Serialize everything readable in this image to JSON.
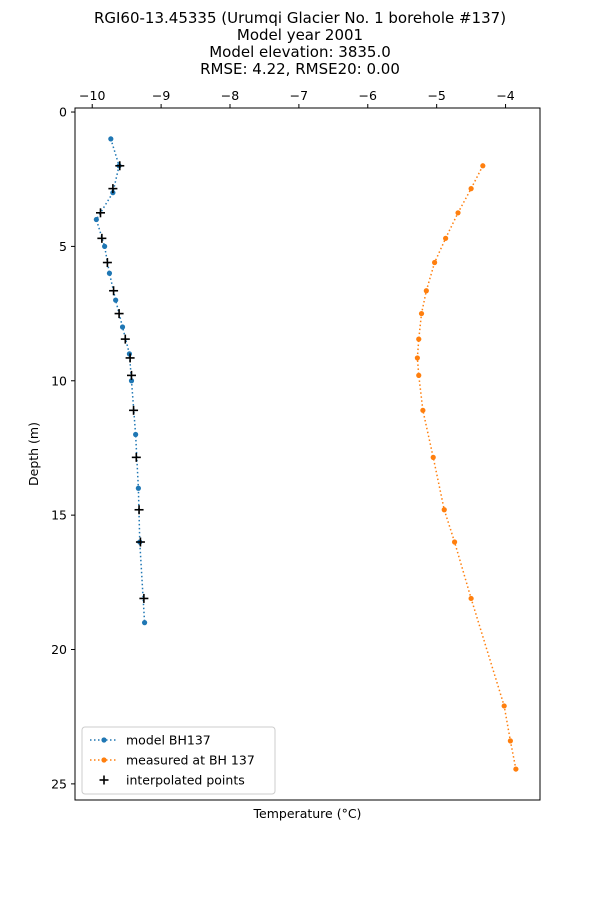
{
  "chart_data": {
    "type": "line",
    "title_lines": [
      "RGI60-13.45335 (Urumqi Glacier No. 1 borehole #137)",
      "Model year 2001",
      "Model elevation: 3835.0",
      "RMSE: 4.22, RMSE20: 0.00"
    ],
    "xlabel": "Temperature (°C)",
    "ylabel": "Depth (m)",
    "xlim": [
      -10.25,
      -3.5
    ],
    "ylim": [
      25.6,
      -0.15
    ],
    "y_inverted": true,
    "x_axis_position": "top",
    "xticks": [
      -10,
      -9,
      -8,
      -7,
      -6,
      -5,
      -4
    ],
    "xtick_labels": [
      "−10",
      "−9",
      "−8",
      "−7",
      "−6",
      "−5",
      "−4"
    ],
    "yticks": [
      0,
      5,
      10,
      15,
      20,
      25
    ],
    "ytick_labels": [
      "0",
      "5",
      "10",
      "15",
      "20",
      "25"
    ],
    "legend_position": "lower-left",
    "grid": false,
    "series": [
      {
        "name": "model BH137",
        "color": "#1f77b4",
        "style": "dotted-line-with-dots",
        "points": [
          {
            "x": -9.73,
            "y": 1.0
          },
          {
            "x": -9.61,
            "y": 2.0
          },
          {
            "x": -9.7,
            "y": 3.0
          },
          {
            "x": -9.94,
            "y": 4.0
          },
          {
            "x": -9.82,
            "y": 5.0
          },
          {
            "x": -9.75,
            "y": 6.0
          },
          {
            "x": -9.66,
            "y": 7.0
          },
          {
            "x": -9.56,
            "y": 8.0
          },
          {
            "x": -9.46,
            "y": 9.0
          },
          {
            "x": -9.43,
            "y": 10.0
          },
          {
            "x": -9.37,
            "y": 12.0
          },
          {
            "x": -9.33,
            "y": 14.0
          },
          {
            "x": -9.31,
            "y": 16.0
          },
          {
            "x": -9.24,
            "y": 19.0
          }
        ]
      },
      {
        "name": "measured at BH 137",
        "color": "#ff7f0e",
        "style": "dotted-line-with-dots",
        "points": [
          {
            "x": -4.33,
            "y": 2.0
          },
          {
            "x": -4.5,
            "y": 2.85
          },
          {
            "x": -4.69,
            "y": 3.75
          },
          {
            "x": -4.87,
            "y": 4.7
          },
          {
            "x": -5.03,
            "y": 5.6
          },
          {
            "x": -5.15,
            "y": 6.65
          },
          {
            "x": -5.22,
            "y": 7.5
          },
          {
            "x": -5.26,
            "y": 8.45
          },
          {
            "x": -5.28,
            "y": 9.15
          },
          {
            "x": -5.26,
            "y": 9.8
          },
          {
            "x": -5.2,
            "y": 11.1
          },
          {
            "x": -5.05,
            "y": 12.85
          },
          {
            "x": -4.89,
            "y": 14.8
          },
          {
            "x": -4.74,
            "y": 16.0
          },
          {
            "x": -4.5,
            "y": 18.1
          },
          {
            "x": -4.02,
            "y": 22.1
          },
          {
            "x": -3.93,
            "y": 23.4
          },
          {
            "x": -3.85,
            "y": 24.45
          }
        ]
      },
      {
        "name": "interpolated points",
        "color": "#000000",
        "style": "plus-markers",
        "points": [
          {
            "x": -9.6,
            "y": 2.0
          },
          {
            "x": -9.7,
            "y": 2.85
          },
          {
            "x": -9.88,
            "y": 3.75
          },
          {
            "x": -9.86,
            "y": 4.7
          },
          {
            "x": -9.78,
            "y": 5.6
          },
          {
            "x": -9.69,
            "y": 6.65
          },
          {
            "x": -9.61,
            "y": 7.5
          },
          {
            "x": -9.52,
            "y": 8.45
          },
          {
            "x": -9.45,
            "y": 9.15
          },
          {
            "x": -9.43,
            "y": 9.8
          },
          {
            "x": -9.4,
            "y": 11.1
          },
          {
            "x": -9.36,
            "y": 12.85
          },
          {
            "x": -9.32,
            "y": 14.8
          },
          {
            "x": -9.3,
            "y": 16.0
          },
          {
            "x": -9.25,
            "y": 18.1
          }
        ]
      }
    ]
  }
}
